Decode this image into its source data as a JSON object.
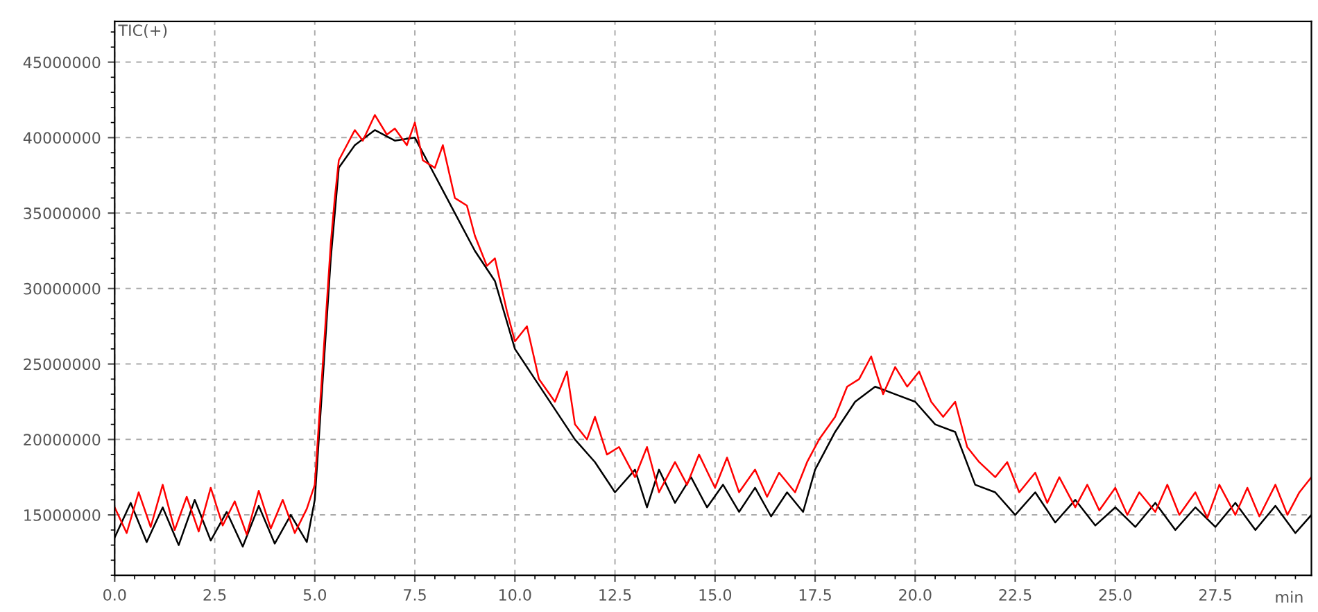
{
  "chart_data": {
    "type": "line",
    "xlabel": "min",
    "ylabel": "TIC(+)",
    "xlim": [
      0,
      29.9
    ],
    "ylim": [
      11000000,
      47700000
    ],
    "xticks": [
      {
        "value": 0,
        "label": "0.0"
      },
      {
        "value": 2.5,
        "label": "2.5"
      },
      {
        "value": 5,
        "label": "5.0"
      },
      {
        "value": 7.5,
        "label": "7.5"
      },
      {
        "value": 10,
        "label": "10.0"
      },
      {
        "value": 12.5,
        "label": "12.5"
      },
      {
        "value": 15,
        "label": "15.0"
      },
      {
        "value": 17.5,
        "label": "17.5"
      },
      {
        "value": 20,
        "label": "20.0"
      },
      {
        "value": 22.5,
        "label": "22.5"
      },
      {
        "value": 25,
        "label": "25.0"
      },
      {
        "value": 27.5,
        "label": "27.5"
      }
    ],
    "yticks": [
      15000000,
      20000000,
      25000000,
      30000000,
      35000000,
      40000000,
      45000000
    ],
    "grid": true,
    "marker": "none",
    "line_style": "solid",
    "series": [
      {
        "color": "#000000",
        "x": [
          0.0,
          0.4,
          0.8,
          1.2,
          1.6,
          2.0,
          2.4,
          2.8,
          3.2,
          3.6,
          4.0,
          4.4,
          4.8,
          5.0,
          5.2,
          5.4,
          5.6,
          6.0,
          6.5,
          7.0,
          7.5,
          8.0,
          8.5,
          9.0,
          9.5,
          10.0,
          10.5,
          11.0,
          11.5,
          12.0,
          12.5,
          13.0,
          13.3,
          13.6,
          14.0,
          14.4,
          14.8,
          15.2,
          15.6,
          16.0,
          16.4,
          16.8,
          17.2,
          17.5,
          18.0,
          18.5,
          19.0,
          19.5,
          20.0,
          20.5,
          21.0,
          21.5,
          22.0,
          22.5,
          23.0,
          23.5,
          24.0,
          24.5,
          25.0,
          25.5,
          26.0,
          26.5,
          27.0,
          27.5,
          28.0,
          28.5,
          29.0,
          29.5,
          29.9
        ],
        "values": [
          13500000,
          15800000,
          13200000,
          15500000,
          13000000,
          16000000,
          13300000,
          15200000,
          12900000,
          15600000,
          13100000,
          15000000,
          13200000,
          16000000,
          24000000,
          32000000,
          38000000,
          39500000,
          40500000,
          39800000,
          40000000,
          37500000,
          35000000,
          32500000,
          30500000,
          26000000,
          24000000,
          22000000,
          20000000,
          18500000,
          16500000,
          18000000,
          15500000,
          18000000,
          15800000,
          17500000,
          15500000,
          17000000,
          15200000,
          16800000,
          14900000,
          16500000,
          15200000,
          18000000,
          20500000,
          22500000,
          23500000,
          23000000,
          22500000,
          21000000,
          20500000,
          17000000,
          16500000,
          15000000,
          16500000,
          14500000,
          16000000,
          14300000,
          15500000,
          14200000,
          15800000,
          14000000,
          15500000,
          14200000,
          15800000,
          14000000,
          15600000,
          13800000,
          15000000
        ]
      },
      {
        "color": "#ff0000",
        "x": [
          0.0,
          0.3,
          0.6,
          0.9,
          1.2,
          1.5,
          1.8,
          2.1,
          2.4,
          2.7,
          3.0,
          3.3,
          3.6,
          3.9,
          4.2,
          4.5,
          4.8,
          5.0,
          5.1,
          5.2,
          5.3,
          5.4,
          5.5,
          5.6,
          5.8,
          6.0,
          6.2,
          6.5,
          6.8,
          7.0,
          7.3,
          7.5,
          7.7,
          8.0,
          8.2,
          8.5,
          8.8,
          9.0,
          9.3,
          9.5,
          9.8,
          10.0,
          10.3,
          10.6,
          11.0,
          11.3,
          11.5,
          11.8,
          12.0,
          12.3,
          12.6,
          13.0,
          13.3,
          13.6,
          14.0,
          14.3,
          14.6,
          15.0,
          15.3,
          15.6,
          16.0,
          16.3,
          16.6,
          17.0,
          17.3,
          17.6,
          18.0,
          18.3,
          18.6,
          18.9,
          19.2,
          19.5,
          19.8,
          20.1,
          20.4,
          20.7,
          21.0,
          21.3,
          21.6,
          22.0,
          22.3,
          22.6,
          23.0,
          23.3,
          23.6,
          24.0,
          24.3,
          24.6,
          25.0,
          25.3,
          25.6,
          26.0,
          26.3,
          26.6,
          27.0,
          27.3,
          27.6,
          28.0,
          28.3,
          28.6,
          29.0,
          29.3,
          29.6,
          29.9
        ],
        "values": [
          15500000,
          13800000,
          16500000,
          14200000,
          17000000,
          14000000,
          16200000,
          13900000,
          16800000,
          14300000,
          15900000,
          13700000,
          16600000,
          14100000,
          16000000,
          13800000,
          15400000,
          17000000,
          21000000,
          25000000,
          29000000,
          33000000,
          36000000,
          38500000,
          39500000,
          40500000,
          39800000,
          41500000,
          40200000,
          40600000,
          39500000,
          41000000,
          38500000,
          38000000,
          39500000,
          36000000,
          35500000,
          33500000,
          31500000,
          32000000,
          28500000,
          26500000,
          27500000,
          24000000,
          22500000,
          24500000,
          21000000,
          20000000,
          21500000,
          19000000,
          19500000,
          17500000,
          19500000,
          16500000,
          18500000,
          17000000,
          19000000,
          16800000,
          18800000,
          16500000,
          18000000,
          16200000,
          17800000,
          16500000,
          18500000,
          20000000,
          21500000,
          23500000,
          24000000,
          25500000,
          23000000,
          24800000,
          23500000,
          24500000,
          22500000,
          21500000,
          22500000,
          19500000,
          18500000,
          17500000,
          18500000,
          16500000,
          17800000,
          15800000,
          17500000,
          15500000,
          17000000,
          15300000,
          16800000,
          15000000,
          16500000,
          15200000,
          17000000,
          15000000,
          16500000,
          14800000,
          17000000,
          15000000,
          16800000,
          14900000,
          17000000,
          15000000,
          16500000,
          17500000
        ]
      }
    ]
  }
}
